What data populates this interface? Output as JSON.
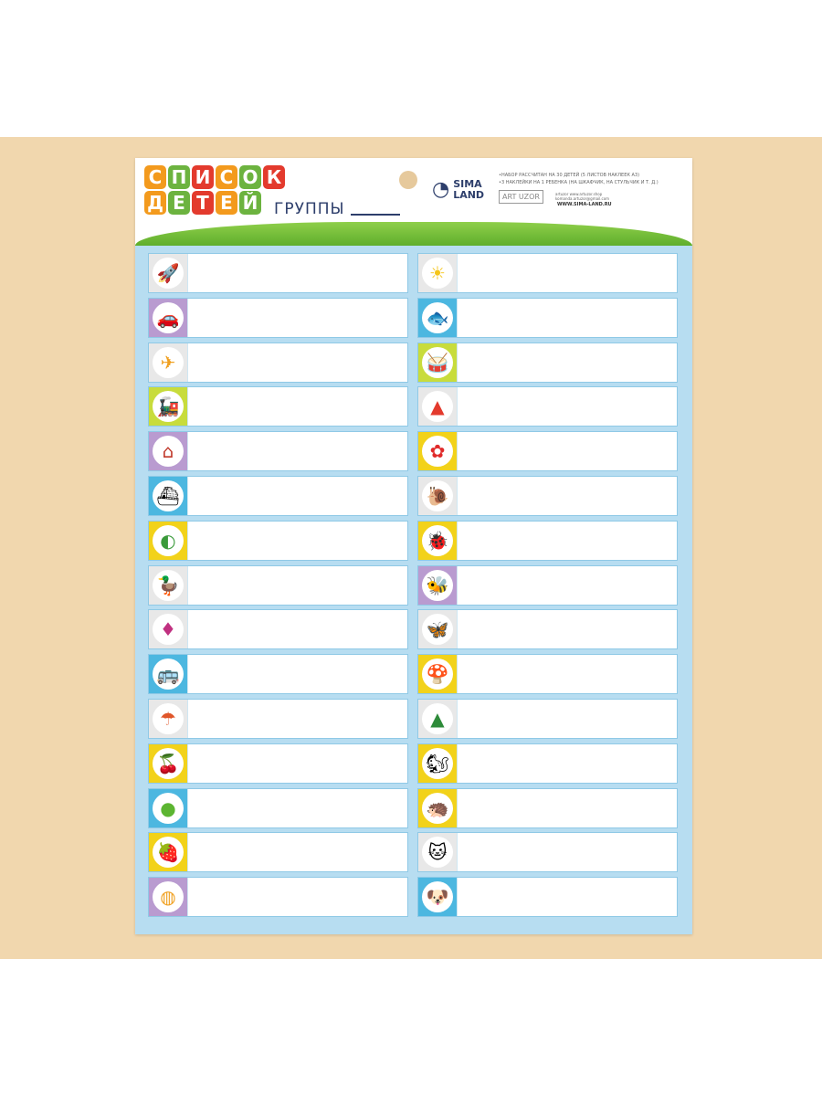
{
  "title": {
    "line1": [
      "С",
      "П",
      "И",
      "С",
      "О",
      "К"
    ],
    "line1_colors": [
      "#f39a1d",
      "#6cb33f",
      "#e33a2d",
      "#f39a1d",
      "#6cb33f",
      "#e33a2d"
    ],
    "line2": [
      "Д",
      "Е",
      "Т",
      "Е",
      "Й"
    ],
    "line2_colors": [
      "#f39a1d",
      "#6cb33f",
      "#e33a2d",
      "#f39a1d",
      "#6cb33f"
    ],
    "groups": "ГРУППЫ"
  },
  "brand": {
    "line1": "SIMA",
    "line2": "LAND",
    "art": "ART UZOR",
    "website": "WWW.SIMA-LAND.RU",
    "contacts": [
      "artuzor  www.artuzor.shop",
      "komanda.artuzor@gmail.com"
    ]
  },
  "notes": [
    "•НАБОР РАССЧИТАН НА 30 ДЕТЕЙ (5 ЛИСТОВ НАКЛЕЕК А3)",
    "•3 НАКЛЕЙКИ НА 1 РЕБЕНКА (НА ШКАФЧИК, НА СТУЛЬЧИК И Т. Д.)"
  ],
  "left": [
    {
      "icon": "rocket",
      "glyph": "🚀",
      "bg": "#e8e8e8"
    },
    {
      "icon": "car",
      "glyph": "🚗",
      "bg": "#b99bd0"
    },
    {
      "icon": "plane",
      "glyph": "✈",
      "bg": "#e8e8e8"
    },
    {
      "icon": "train",
      "glyph": "🚂",
      "bg": "#c8dc3c"
    },
    {
      "icon": "house",
      "glyph": "⌂",
      "bg": "#b99bd0"
    },
    {
      "icon": "boat",
      "glyph": "⛴",
      "bg": "#4cb7e0"
    },
    {
      "icon": "watermelon",
      "glyph": "◐",
      "bg": "#f2d21a"
    },
    {
      "icon": "duck",
      "glyph": "🦆",
      "bg": "#e8e8e8"
    },
    {
      "icon": "spinning-top",
      "glyph": "♦",
      "bg": "#e8e8e8"
    },
    {
      "icon": "bus",
      "glyph": "🚌",
      "bg": "#4cb7e0"
    },
    {
      "icon": "umbrella",
      "glyph": "☂",
      "bg": "#e8e8e8"
    },
    {
      "icon": "cherry",
      "glyph": "🍒",
      "bg": "#f2d21a"
    },
    {
      "icon": "apple",
      "glyph": "●",
      "bg": "#4cb7e0"
    },
    {
      "icon": "strawberry",
      "glyph": "🍓",
      "bg": "#f2d21a"
    },
    {
      "icon": "ball",
      "glyph": "◍",
      "bg": "#b99bd0"
    }
  ],
  "right": [
    {
      "icon": "sun",
      "glyph": "☀",
      "bg": "#e8e8e8"
    },
    {
      "icon": "fish",
      "glyph": "🐟",
      "bg": "#4cb7e0"
    },
    {
      "icon": "drum",
      "glyph": "🥁",
      "bg": "#c8dc3c"
    },
    {
      "icon": "pyramid-toy",
      "glyph": "▲",
      "bg": "#e8e8e8"
    },
    {
      "icon": "flower",
      "glyph": "✿",
      "bg": "#f2d21a"
    },
    {
      "icon": "snail",
      "glyph": "🐌",
      "bg": "#e8e8e8"
    },
    {
      "icon": "ladybug",
      "glyph": "🐞",
      "bg": "#f2d21a"
    },
    {
      "icon": "bee",
      "glyph": "🐝",
      "bg": "#b99bd0"
    },
    {
      "icon": "butterfly",
      "glyph": "🦋",
      "bg": "#e8e8e8"
    },
    {
      "icon": "mushroom",
      "glyph": "🍄",
      "bg": "#f2d21a"
    },
    {
      "icon": "fir-tree",
      "glyph": "▲",
      "bg": "#e8e8e8"
    },
    {
      "icon": "squirrel",
      "glyph": "🐿",
      "bg": "#f2d21a"
    },
    {
      "icon": "hedgehog",
      "glyph": "🦔",
      "bg": "#f2d21a"
    },
    {
      "icon": "kitten",
      "glyph": "🐱",
      "bg": "#e8e8e8"
    },
    {
      "icon": "dog",
      "glyph": "🐶",
      "bg": "#4cb7e0"
    }
  ],
  "glyph_colors": {
    "apple": "#5cb531",
    "fir-tree": "#2e8b3a",
    "flower": "#e02a2a",
    "sun": "#f5c518",
    "umbrella": "#e0562a",
    "spinning-top": "#c03080",
    "watermelon": "#3a9a3a",
    "house": "#c0392b",
    "ball": "#f0a020",
    "pyramid-toy": "#e33a2d",
    "plane": "#f0a020"
  }
}
